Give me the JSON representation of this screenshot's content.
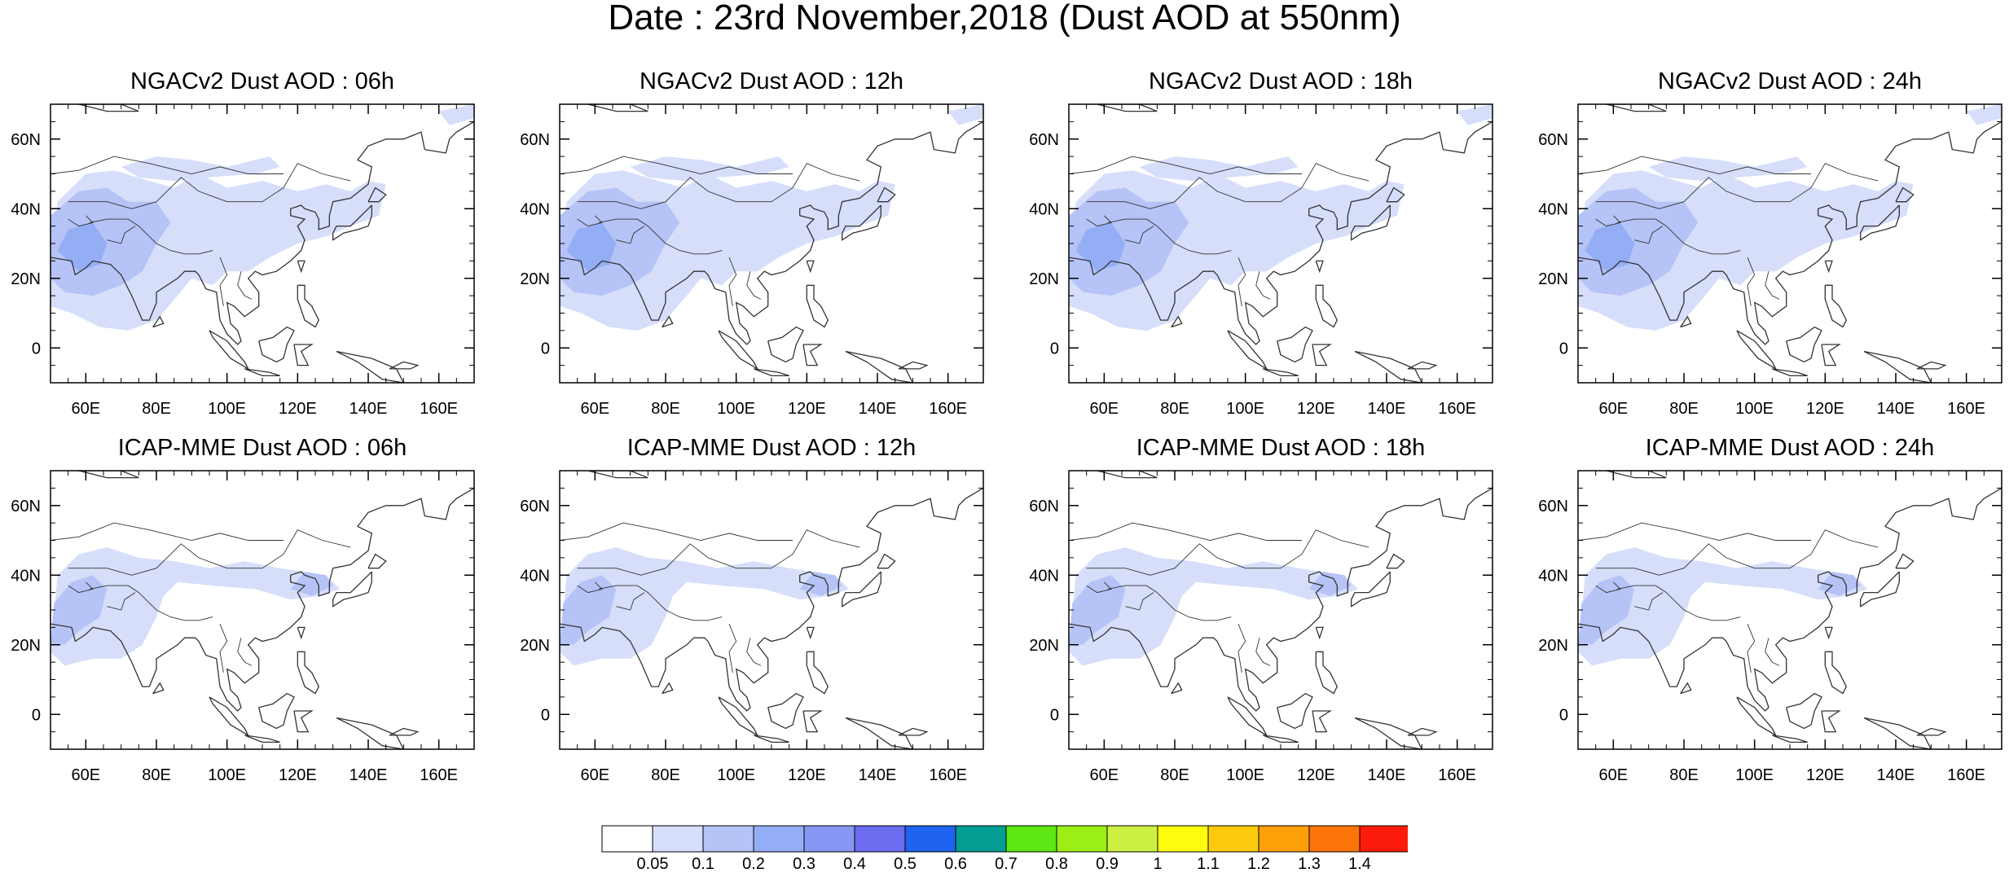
{
  "title": "Date : 23rd November,2018 (Dust AOD at 550nm)",
  "map_axes": {
    "lon_ticks": [
      "60E",
      "80E",
      "100E",
      "120E",
      "140E",
      "160E"
    ],
    "lat_ticks": [
      "60N",
      "40N",
      "20N",
      "0"
    ],
    "lon_range": [
      50,
      170
    ],
    "lat_range": [
      -10,
      70
    ]
  },
  "panels": [
    {
      "title": "NGACv2 Dust AOD : 06h"
    },
    {
      "title": "NGACv2 Dust AOD : 12h"
    },
    {
      "title": "NGACv2 Dust AOD : 18h"
    },
    {
      "title": "NGACv2 Dust AOD : 24h"
    },
    {
      "title": "ICAP-MME Dust AOD : 06h"
    },
    {
      "title": "ICAP-MME Dust AOD : 12h"
    },
    {
      "title": "ICAP-MME Dust AOD : 18h"
    },
    {
      "title": "ICAP-MME Dust AOD : 24h"
    }
  ],
  "colorbar": {
    "colors": [
      "#ffffff",
      "#d6defa",
      "#b6c3f7",
      "#94aef5",
      "#8697f3",
      "#6b6cf0",
      "#1f64ee",
      "#039d94",
      "#5ee714",
      "#9bef14",
      "#cbf042",
      "#fcfc0c",
      "#fcca0c",
      "#fca00a",
      "#fb740a",
      "#fb1b0a"
    ],
    "labels": [
      "0.05",
      "0.1",
      "0.2",
      "0.3",
      "0.4",
      "0.5",
      "0.6",
      "0.7",
      "0.8",
      "0.9",
      "1",
      "1.1",
      "1.2",
      "1.3",
      "1.4"
    ]
  }
}
